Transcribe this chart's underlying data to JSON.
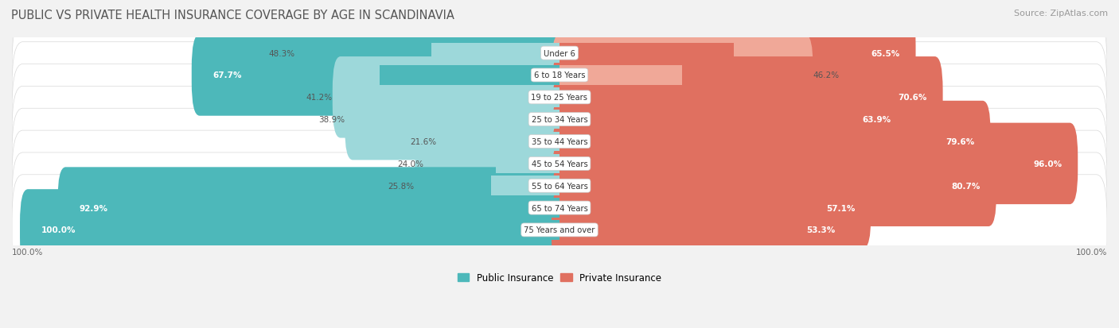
{
  "title": "PUBLIC VS PRIVATE HEALTH INSURANCE COVERAGE BY AGE IN SCANDINAVIA",
  "source": "Source: ZipAtlas.com",
  "categories": [
    "Under 6",
    "6 to 18 Years",
    "19 to 25 Years",
    "25 to 34 Years",
    "35 to 44 Years",
    "45 to 54 Years",
    "55 to 64 Years",
    "65 to 74 Years",
    "75 Years and over"
  ],
  "public_values": [
    48.3,
    67.7,
    41.2,
    38.9,
    21.6,
    24.0,
    25.8,
    92.9,
    100.0
  ],
  "private_values": [
    65.5,
    46.2,
    70.6,
    63.9,
    79.6,
    96.0,
    80.7,
    57.1,
    53.3
  ],
  "public_color_dark": "#4db8ba",
  "public_color_light": "#9dd8da",
  "private_color_dark": "#e07060",
  "private_color_light": "#f0a898",
  "row_bg_odd": "#f5f5f5",
  "row_bg_even": "#ebebeb",
  "title_color": "#555555",
  "source_color": "#999999",
  "axis_label_color": "#666666",
  "max_val": 100.0,
  "legend_public": "Public Insurance",
  "legend_private": "Private Insurance",
  "threshold": 50.0
}
